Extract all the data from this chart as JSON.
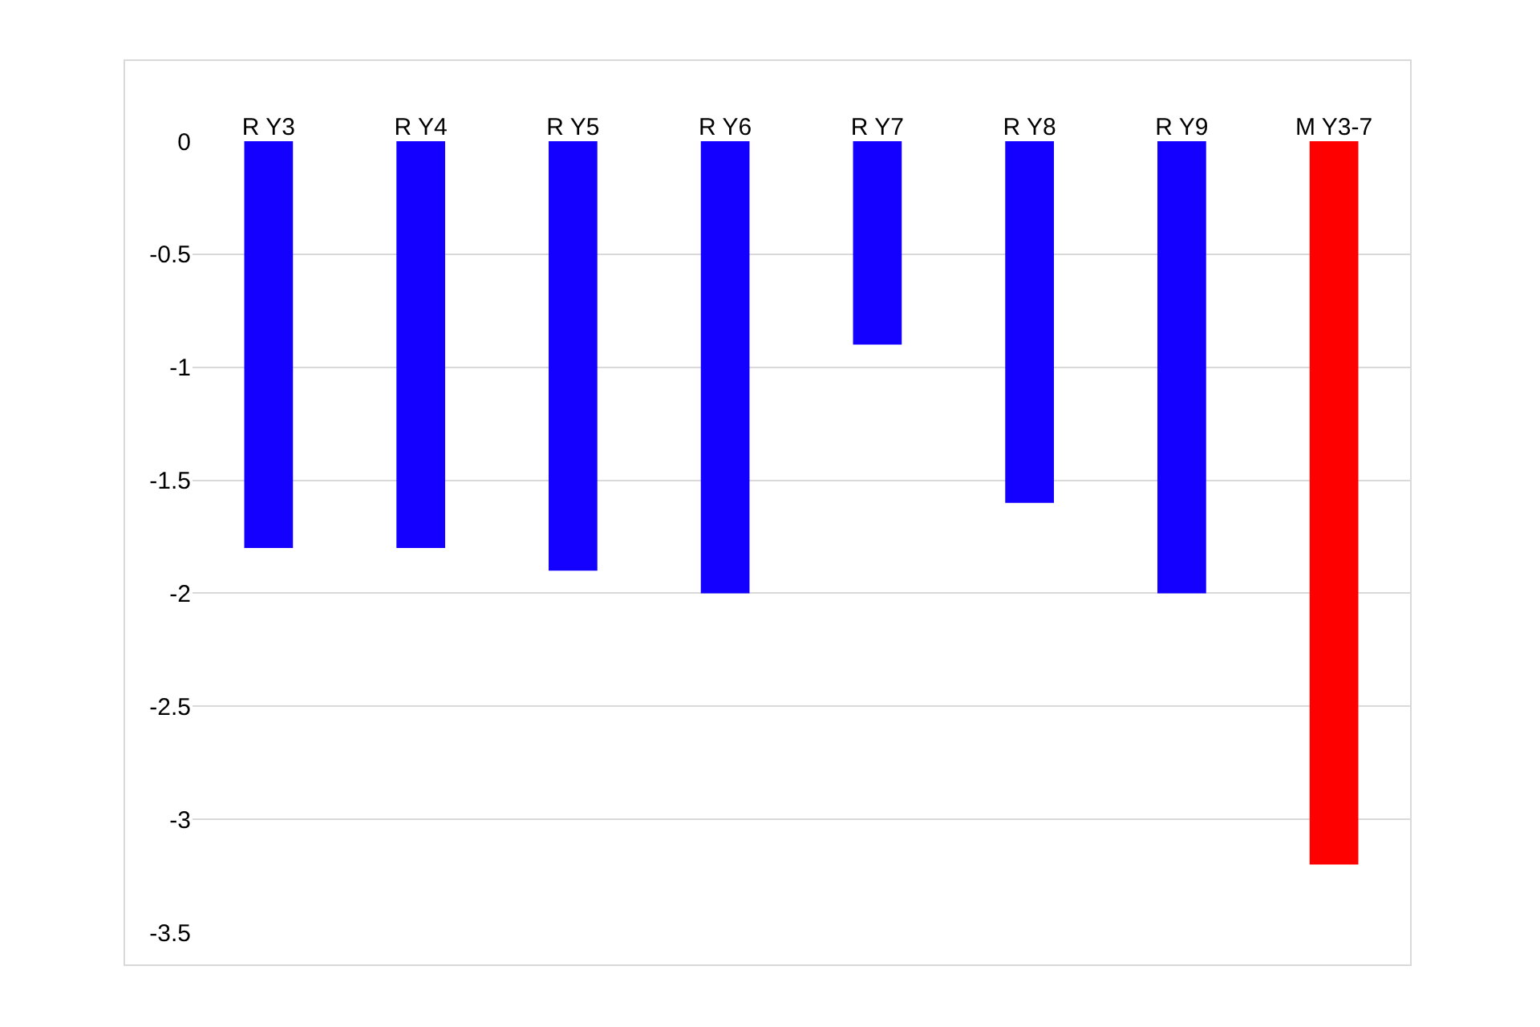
{
  "chart_data": {
    "type": "bar",
    "categories": [
      "R Y3",
      "R Y4",
      "R Y5",
      "R Y6",
      "R Y7",
      "R Y8",
      "R Y9",
      "M Y3-7"
    ],
    "values": [
      -1.8,
      -1.8,
      -1.9,
      -2,
      -0.9,
      -1.6,
      -2,
      -3.2
    ],
    "colors": [
      "#1400ff",
      "#1400ff",
      "#1400ff",
      "#1400ff",
      "#1400ff",
      "#1400ff",
      "#1400ff",
      "#ff0000"
    ],
    "ylim": [
      -3.5,
      0
    ],
    "yticks": [
      0,
      -0.5,
      -1,
      -1.5,
      -2,
      -2.5,
      -3,
      -3.5
    ],
    "grid": "y",
    "legend": false
  }
}
